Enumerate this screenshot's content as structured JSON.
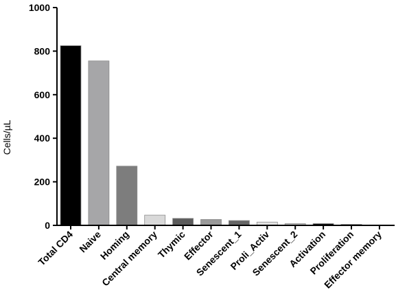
{
  "chart_data": {
    "type": "bar",
    "title": "",
    "xlabel": "",
    "ylabel": "Cells/µL",
    "ylim": [
      0,
      1000
    ],
    "yticks": [
      0,
      200,
      400,
      600,
      800,
      1000
    ],
    "grid": false,
    "legend": "none",
    "categories": [
      "Total CD4",
      "Naive",
      "Homing",
      "Central memory",
      "Thymic",
      "Effector",
      "Senescent_1",
      "Proli_Activ",
      "Senescent_2",
      "Activation",
      "Proliferation",
      "Effector memory"
    ],
    "values": [
      825,
      755,
      272,
      47,
      32,
      27,
      22,
      15,
      8,
      8,
      5,
      2
    ],
    "colors": [
      "#000000",
      "#a6a6a8",
      "#7d7d7d",
      "#d9d9d9",
      "#5c5c5c",
      "#9a9a9a",
      "#666666",
      "#e3e3e3",
      "#bcbcbc",
      "#111111",
      "#9a9a9a",
      "#ffffff"
    ]
  }
}
